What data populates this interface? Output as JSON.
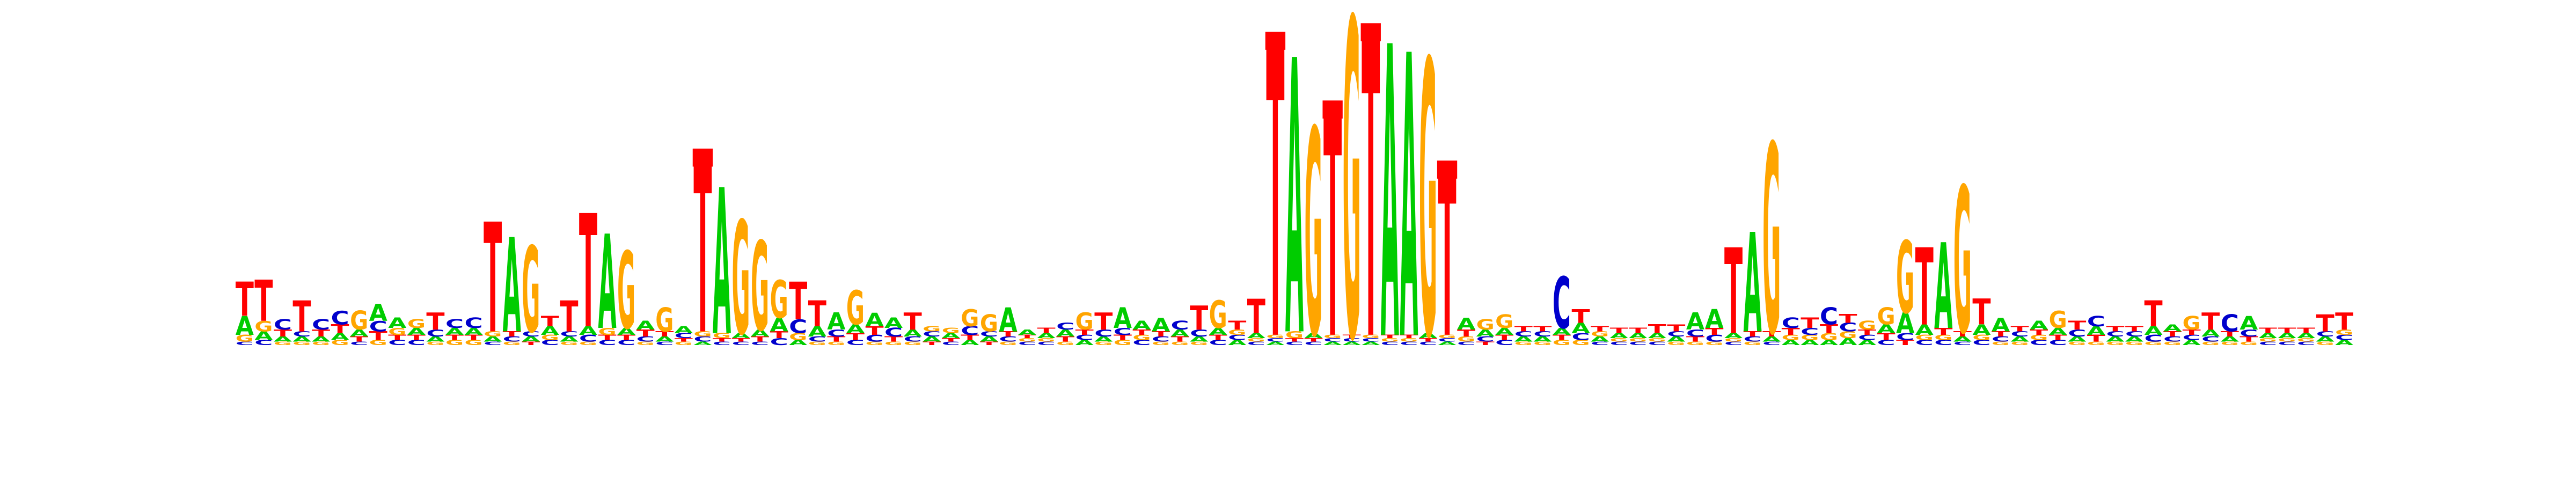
{
  "chart_data": {
    "type": "sequence-logo",
    "title": "",
    "xlabel": "",
    "ylabel": "",
    "alphabet": [
      "A",
      "C",
      "G",
      "T"
    ],
    "colors": {
      "A": "#00cc00",
      "C": "#0000cc",
      "G": "#ffa500",
      "T": "#ff0000"
    },
    "ylim": [
      0,
      2
    ],
    "position_glyph": "square-marker",
    "positions": [
      {
        "A": 0.11,
        "C": 0.02,
        "G": 0.04,
        "T": 0.2
      },
      {
        "A": 0.05,
        "C": 0.03,
        "G": 0.06,
        "T": 0.24
      },
      {
        "A": 0.03,
        "C": 0.06,
        "G": 0.02,
        "T": 0.04
      },
      {
        "A": 0.03,
        "C": 0.03,
        "G": 0.02,
        "T": 0.18
      },
      {
        "A": 0.03,
        "C": 0.06,
        "G": 0.02,
        "T": 0.04
      },
      {
        "A": 0.04,
        "C": 0.08,
        "G": 0.03,
        "T": 0.05
      },
      {
        "A": 0.04,
        "C": 0.02,
        "G": 0.11,
        "T": 0.03
      },
      {
        "A": 0.1,
        "C": 0.06,
        "G": 0.03,
        "T": 0.05
      },
      {
        "A": 0.06,
        "C": 0.03,
        "G": 0.04,
        "T": 0.03
      },
      {
        "A": 0.04,
        "C": 0.03,
        "G": 0.05,
        "T": 0.03
      },
      {
        "A": 0.03,
        "C": 0.04,
        "G": 0.02,
        "T": 0.1
      },
      {
        "A": 0.04,
        "C": 0.05,
        "G": 0.03,
        "T": 0.03
      },
      {
        "A": 0.04,
        "C": 0.06,
        "G": 0.03,
        "T": 0.03
      },
      {
        "A": 0.03,
        "C": 0.02,
        "G": 0.03,
        "T": 0.64
      },
      {
        "A": 0.55,
        "C": 0.03,
        "G": 0.02,
        "T": 0.03
      },
      {
        "A": 0.03,
        "C": 0.03,
        "G": 0.5,
        "T": 0.02
      },
      {
        "A": 0.05,
        "C": 0.03,
        "G": 0.03,
        "T": 0.06
      },
      {
        "A": 0.03,
        "C": 0.03,
        "G": 0.02,
        "T": 0.18
      },
      {
        "A": 0.05,
        "C": 0.04,
        "G": 0.02,
        "T": 0.66
      },
      {
        "A": 0.55,
        "C": 0.03,
        "G": 0.04,
        "T": 0.03
      },
      {
        "A": 0.04,
        "C": 0.03,
        "G": 0.45,
        "T": 0.03
      },
      {
        "A": 0.05,
        "C": 0.03,
        "G": 0.02,
        "T": 0.04
      },
      {
        "A": 0.03,
        "C": 0.02,
        "G": 0.14,
        "T": 0.03
      },
      {
        "A": 0.04,
        "C": 0.03,
        "G": 0.02,
        "T": 0.02
      },
      {
        "A": 0.02,
        "C": 0.03,
        "G": 0.03,
        "T": 1.0
      },
      {
        "A": 0.85,
        "C": 0.02,
        "G": 0.03,
        "T": 0.02
      },
      {
        "A": 0.03,
        "C": 0.02,
        "G": 0.66,
        "T": 0.02
      },
      {
        "A": 0.04,
        "C": 0.02,
        "G": 0.52,
        "T": 0.03
      },
      {
        "A": 0.08,
        "C": 0.04,
        "G": 0.22,
        "T": 0.04
      },
      {
        "A": 0.03,
        "C": 0.08,
        "G": 0.04,
        "T": 0.22
      },
      {
        "A": 0.06,
        "C": 0.03,
        "G": 0.02,
        "T": 0.15
      },
      {
        "A": 0.1,
        "C": 0.04,
        "G": 0.02,
        "T": 0.03
      },
      {
        "A": 0.05,
        "C": 0.03,
        "G": 0.2,
        "T": 0.04
      },
      {
        "A": 0.08,
        "C": 0.04,
        "G": 0.02,
        "T": 0.05
      },
      {
        "A": 0.06,
        "C": 0.05,
        "G": 0.02,
        "T": 0.03
      },
      {
        "A": 0.04,
        "C": 0.03,
        "G": 0.02,
        "T": 0.1
      },
      {
        "A": 0.03,
        "C": 0.03,
        "G": 0.03,
        "T": 0.02
      },
      {
        "A": 0.03,
        "C": 0.02,
        "G": 0.03,
        "T": 0.02
      },
      {
        "A": 0.03,
        "C": 0.05,
        "G": 0.1,
        "T": 0.03
      },
      {
        "A": 0.03,
        "C": 0.03,
        "G": 0.1,
        "T": 0.02
      },
      {
        "A": 0.14,
        "C": 0.03,
        "G": 0.02,
        "T": 0.03
      },
      {
        "A": 0.03,
        "C": 0.02,
        "G": 0.02,
        "T": 0.02
      },
      {
        "A": 0.03,
        "C": 0.02,
        "G": 0.02,
        "T": 0.03
      },
      {
        "A": 0.04,
        "C": 0.04,
        "G": 0.02,
        "T": 0.03
      },
      {
        "A": 0.03,
        "C": 0.03,
        "G": 0.1,
        "T": 0.03
      },
      {
        "A": 0.03,
        "C": 0.04,
        "G": 0.02,
        "T": 0.1
      },
      {
        "A": 0.12,
        "C": 0.04,
        "G": 0.03,
        "T": 0.03
      },
      {
        "A": 0.05,
        "C": 0.03,
        "G": 0.03,
        "T": 0.03
      },
      {
        "A": 0.08,
        "C": 0.03,
        "G": 0.02,
        "T": 0.03
      },
      {
        "A": 0.04,
        "C": 0.05,
        "G": 0.02,
        "T": 0.03
      },
      {
        "A": 0.03,
        "C": 0.04,
        "G": 0.02,
        "T": 0.14
      },
      {
        "A": 0.04,
        "C": 0.03,
        "G": 0.16,
        "T": 0.03
      },
      {
        "A": 0.03,
        "C": 0.03,
        "G": 0.03,
        "T": 0.05
      },
      {
        "A": 0.03,
        "C": 0.02,
        "G": 0.02,
        "T": 0.2
      },
      {
        "A": 0.02,
        "C": 0.02,
        "G": 0.02,
        "T": 1.7
      },
      {
        "A": 1.6,
        "C": 0.02,
        "G": 0.04,
        "T": 0.02
      },
      {
        "A": 0.03,
        "C": 0.02,
        "G": 1.2,
        "T": 0.02
      },
      {
        "A": 0.02,
        "C": 0.02,
        "G": 0.02,
        "T": 1.3
      },
      {
        "A": 0.02,
        "C": 0.02,
        "G": 1.85,
        "T": 0.02
      },
      {
        "A": 0.02,
        "C": 0.02,
        "G": 0.02,
        "T": 1.75
      },
      {
        "A": 1.7,
        "C": 0.02,
        "G": 0.02,
        "T": 0.02
      },
      {
        "A": 1.65,
        "C": 0.02,
        "G": 0.02,
        "T": 0.02
      },
      {
        "A": 0.03,
        "C": 0.02,
        "G": 1.6,
        "T": 0.02
      },
      {
        "A": 0.02,
        "C": 0.02,
        "G": 0.02,
        "T": 0.95
      },
      {
        "A": 0.07,
        "C": 0.02,
        "G": 0.03,
        "T": 0.04
      },
      {
        "A": 0.04,
        "C": 0.03,
        "G": 0.06,
        "T": 0.02
      },
      {
        "A": 0.04,
        "C": 0.03,
        "G": 0.08,
        "T": 0.03
      },
      {
        "A": 0.03,
        "C": 0.03,
        "G": 0.02,
        "T": 0.03
      },
      {
        "A": 0.03,
        "C": 0.03,
        "G": 0.02,
        "T": 0.03
      },
      {
        "A": 0.04,
        "C": 0.3,
        "G": 0.03,
        "T": 0.03
      },
      {
        "A": 0.06,
        "C": 0.04,
        "G": 0.03,
        "T": 0.08
      },
      {
        "A": 0.03,
        "C": 0.02,
        "G": 0.03,
        "T": 0.03
      },
      {
        "A": 0.03,
        "C": 0.02,
        "G": 0.02,
        "T": 0.03
      },
      {
        "A": 0.03,
        "C": 0.02,
        "G": 0.02,
        "T": 0.03
      },
      {
        "A": 0.03,
        "C": 0.02,
        "G": 0.02,
        "T": 0.05
      },
      {
        "A": 0.03,
        "C": 0.03,
        "G": 0.02,
        "T": 0.04
      },
      {
        "A": 0.1,
        "C": 0.04,
        "G": 0.02,
        "T": 0.03
      },
      {
        "A": 0.11,
        "C": 0.04,
        "G": 0.02,
        "T": 0.04
      },
      {
        "A": 0.03,
        "C": 0.02,
        "G": 0.02,
        "T": 0.5
      },
      {
        "A": 0.58,
        "C": 0.03,
        "G": 0.02,
        "T": 0.03
      },
      {
        "A": 0.03,
        "C": 0.02,
        "G": 1.1,
        "T": 0.03
      },
      {
        "A": 0.03,
        "C": 0.06,
        "G": 0.03,
        "T": 0.04
      },
      {
        "A": 0.03,
        "C": 0.04,
        "G": 0.03,
        "T": 0.06
      },
      {
        "A": 0.03,
        "C": 0.1,
        "G": 0.04,
        "T": 0.05
      },
      {
        "A": 0.04,
        "C": 0.05,
        "G": 0.04,
        "T": 0.05
      },
      {
        "A": 0.03,
        "C": 0.03,
        "G": 0.05,
        "T": 0.03
      },
      {
        "A": 0.05,
        "C": 0.03,
        "G": 0.1,
        "T": 0.04
      },
      {
        "A": 0.12,
        "C": 0.04,
        "G": 0.42,
        "T": 0.03
      },
      {
        "A": 0.06,
        "C": 0.03,
        "G": 0.03,
        "T": 0.45
      },
      {
        "A": 0.5,
        "C": 0.03,
        "G": 0.03,
        "T": 0.04
      },
      {
        "A": 0.03,
        "C": 0.02,
        "G": 0.85,
        "T": 0.03
      },
      {
        "A": 0.06,
        "C": 0.03,
        "G": 0.03,
        "T": 0.15
      },
      {
        "A": 0.08,
        "C": 0.03,
        "G": 0.02,
        "T": 0.03
      },
      {
        "A": 0.03,
        "C": 0.03,
        "G": 0.02,
        "T": 0.03
      },
      {
        "A": 0.05,
        "C": 0.03,
        "G": 0.03,
        "T": 0.03
      },
      {
        "A": 0.04,
        "C": 0.03,
        "G": 0.1,
        "T": 0.03
      },
      {
        "A": 0.03,
        "C": 0.04,
        "G": 0.02,
        "T": 0.05
      },
      {
        "A": 0.05,
        "C": 0.06,
        "G": 0.02,
        "T": 0.04
      },
      {
        "A": 0.03,
        "C": 0.03,
        "G": 0.02,
        "T": 0.03
      },
      {
        "A": 0.03,
        "C": 0.03,
        "G": 0.02,
        "T": 0.03
      },
      {
        "A": 0.05,
        "C": 0.04,
        "G": 0.02,
        "T": 0.15
      },
      {
        "A": 0.04,
        "C": 0.03,
        "G": 0.02,
        "T": 0.03
      },
      {
        "A": 0.03,
        "C": 0.03,
        "G": 0.08,
        "T": 0.03
      },
      {
        "A": 0.04,
        "C": 0.03,
        "G": 0.02,
        "T": 0.1
      },
      {
        "A": 0.03,
        "C": 0.1,
        "G": 0.02,
        "T": 0.03
      },
      {
        "A": 0.08,
        "C": 0.04,
        "G": 0.02,
        "T": 0.03
      },
      {
        "A": 0.03,
        "C": 0.02,
        "G": 0.02,
        "T": 0.03
      },
      {
        "A": 0.03,
        "C": 0.02,
        "G": 0.02,
        "T": 0.03
      },
      {
        "A": 0.03,
        "C": 0.02,
        "G": 0.02,
        "T": 0.03
      },
      {
        "A": 0.03,
        "C": 0.03,
        "G": 0.02,
        "T": 0.1
      },
      {
        "A": 0.03,
        "C": 0.03,
        "G": 0.03,
        "T": 0.1
      }
    ]
  }
}
